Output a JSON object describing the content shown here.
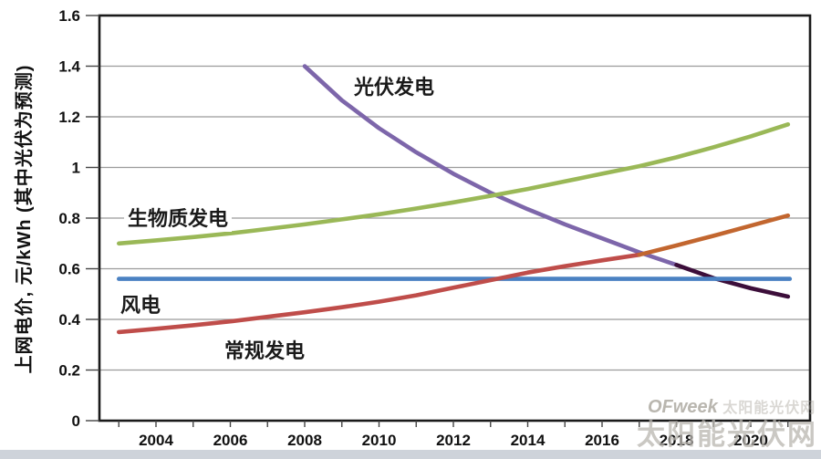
{
  "page": {
    "background": "#ffffff",
    "footer_bar_color": "#ced3da"
  },
  "y_axis": {
    "title": "上网电价, 元/kWh (其中光伏为预测)",
    "labels": [
      "0",
      "0.2",
      "0.4",
      "0.6",
      "0.8",
      "1",
      "1.2",
      "1.4",
      "1.6"
    ],
    "values": [
      0,
      0.2,
      0.4,
      0.6,
      0.8,
      1,
      1.2,
      1.4,
      1.6
    ]
  },
  "x_axis": {
    "labels": [
      "2004",
      "2006",
      "2008",
      "2010",
      "2012",
      "2014",
      "2016",
      "2018",
      "2020"
    ],
    "label_years": [
      2004,
      2006,
      2008,
      2010,
      2012,
      2014,
      2016,
      2018,
      2020
    ],
    "minor_years": [
      2003,
      2004,
      2005,
      2006,
      2007,
      2008,
      2009,
      2010,
      2011,
      2012,
      2013,
      2014,
      2015,
      2016,
      2017,
      2018,
      2019,
      2020,
      2021
    ]
  },
  "annotations": {
    "pv": "光伏发电",
    "biomass": "生物质发电",
    "wind": "风电",
    "conventional": "常规发电"
  },
  "watermark": {
    "brand": "OFweek",
    "brand_suffix": "太阳能光伏网",
    "site": "太阳能光伏网"
  },
  "colors": {
    "grid": "#9b9b9b",
    "frame": "#1a1a1a",
    "tick_text": "#111111",
    "pv": "#7d66aa",
    "pv_forecast": "#3c0e3a",
    "biomass": "#9ab857",
    "wind": "#4a81c2",
    "conventional": "#bf4d4a",
    "conventional_forecast": "#c2662f"
  },
  "chart_data": {
    "type": "line",
    "title": "",
    "xlabel": "",
    "ylabel": "上网电价, 元/kWh (其中光伏为预测)",
    "ylim": [
      0,
      1.6
    ],
    "xlim": [
      2002.5,
      2022
    ],
    "grid": true,
    "legend_position": "inline-labels",
    "series": [
      {
        "name": "光伏发电",
        "key": "pv",
        "color": "#7d66aa",
        "points": [
          [
            2008,
            1.4
          ],
          [
            2009,
            1.265
          ],
          [
            2010,
            1.155
          ],
          [
            2011,
            1.06
          ],
          [
            2012,
            0.975
          ],
          [
            2013,
            0.9
          ],
          [
            2014,
            0.835
          ],
          [
            2015,
            0.775
          ],
          [
            2016,
            0.72
          ],
          [
            2017,
            0.665
          ],
          [
            2018,
            0.615
          ]
        ]
      },
      {
        "name": "光伏发电(预测)",
        "key": "pv-forecast",
        "color": "#3c0e3a",
        "points": [
          [
            2018,
            0.615
          ],
          [
            2019,
            0.563
          ],
          [
            2020,
            0.523
          ],
          [
            2021,
            0.49
          ]
        ]
      },
      {
        "name": "生物质发电",
        "key": "biomass",
        "color": "#9ab857",
        "points": [
          [
            2003,
            0.7
          ],
          [
            2004,
            0.712
          ],
          [
            2005,
            0.725
          ],
          [
            2006,
            0.74
          ],
          [
            2007,
            0.757
          ],
          [
            2008,
            0.775
          ],
          [
            2009,
            0.795
          ],
          [
            2010,
            0.815
          ],
          [
            2011,
            0.838
          ],
          [
            2012,
            0.862
          ],
          [
            2013,
            0.888
          ],
          [
            2014,
            0.915
          ],
          [
            2015,
            0.945
          ],
          [
            2016,
            0.975
          ],
          [
            2017,
            1.005
          ],
          [
            2018,
            1.04
          ],
          [
            2019,
            1.08
          ],
          [
            2020,
            1.123
          ],
          [
            2021,
            1.17
          ]
        ]
      },
      {
        "name": "风电",
        "key": "wind",
        "color": "#4a81c2",
        "points": [
          [
            2003,
            0.56
          ],
          [
            2021.05,
            0.56
          ]
        ]
      },
      {
        "name": "常规发电",
        "key": "conventional",
        "color": "#bf4d4a",
        "points": [
          [
            2003,
            0.35
          ],
          [
            2004,
            0.363
          ],
          [
            2005,
            0.377
          ],
          [
            2006,
            0.392
          ],
          [
            2007,
            0.41
          ],
          [
            2008,
            0.428
          ],
          [
            2009,
            0.448
          ],
          [
            2010,
            0.47
          ],
          [
            2011,
            0.495
          ],
          [
            2012,
            0.525
          ],
          [
            2013,
            0.555
          ],
          [
            2014,
            0.585
          ],
          [
            2015,
            0.61
          ],
          [
            2016,
            0.633
          ],
          [
            2017,
            0.655
          ]
        ]
      },
      {
        "name": "常规发电(延伸)",
        "key": "conventional-forecast",
        "color": "#c2662f",
        "points": [
          [
            2017,
            0.655
          ],
          [
            2018,
            0.692
          ],
          [
            2019,
            0.73
          ],
          [
            2020,
            0.77
          ],
          [
            2021,
            0.81
          ]
        ]
      }
    ]
  }
}
